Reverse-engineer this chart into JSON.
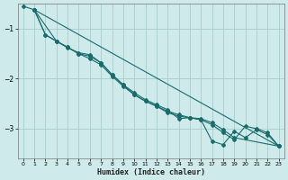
{
  "title": "",
  "xlabel": "Humidex (Indice chaleur)",
  "ylabel": "",
  "background_color": "#ceeaea",
  "grid_color": "#a8cccc",
  "line_color": "#1a6b6b",
  "xlim": [
    -0.5,
    23.5
  ],
  "ylim": [
    -3.6,
    -0.5
  ],
  "xticks": [
    0,
    1,
    2,
    3,
    4,
    5,
    6,
    7,
    8,
    9,
    10,
    11,
    12,
    13,
    14,
    15,
    16,
    17,
    18,
    19,
    20,
    21,
    22,
    23
  ],
  "yticks": [
    -3,
    -2,
    -1
  ],
  "series": [
    [
      null,
      -0.62,
      null,
      null,
      null,
      null,
      null,
      null,
      null,
      null,
      null,
      null,
      null,
      null,
      null,
      null,
      null,
      null,
      null,
      null,
      null,
      null,
      null,
      -3.35
    ],
    [
      null,
      -0.62,
      -1.12,
      -1.25,
      -1.38,
      -1.48,
      -1.52,
      -1.68,
      -1.92,
      -2.12,
      -2.32,
      -2.45,
      -2.55,
      -2.68,
      -2.75,
      -2.78,
      -2.82,
      -2.92,
      -3.08,
      -3.22,
      -2.95,
      -3.0,
      -3.08,
      -3.35
    ],
    [
      -0.55,
      -0.62,
      null,
      -1.25,
      -1.37,
      -1.5,
      -1.6,
      -1.72,
      -1.95,
      -2.15,
      -2.32,
      -2.45,
      -2.55,
      -2.65,
      -2.72,
      -2.78,
      -2.82,
      -3.25,
      -3.32,
      -3.05,
      -3.18,
      -3.02,
      -3.12,
      -3.35
    ],
    [
      null,
      -0.62,
      -1.12,
      -1.25,
      -1.37,
      -1.5,
      -1.55,
      -1.68,
      -1.92,
      -2.12,
      -2.28,
      -2.42,
      -2.52,
      -2.62,
      -2.8,
      -2.78,
      -2.8,
      -2.88,
      -3.02,
      -3.18,
      null,
      null,
      null,
      -3.35
    ]
  ]
}
